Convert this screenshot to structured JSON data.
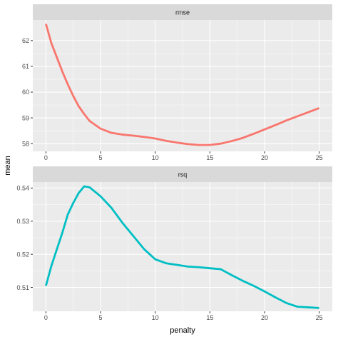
{
  "chart_data": {
    "type": "line",
    "xlabel": "penalty",
    "ylabel": "mean",
    "x_ticks": [
      0,
      5,
      10,
      15,
      20,
      25
    ],
    "x_tick_labels": [
      "0",
      "5",
      "10",
      "15",
      "20",
      "25"
    ],
    "grid": true,
    "panels": [
      {
        "strip_label": "rmse",
        "color": "#F8766D",
        "y_ticks": [
          58,
          59,
          60,
          61,
          62
        ],
        "y_tick_labels": [
          "58",
          "59",
          "60",
          "61",
          "62"
        ],
        "x": [
          0,
          0.5,
          1,
          1.5,
          2,
          2.5,
          3,
          3.5,
          4,
          5,
          6,
          7,
          8,
          9,
          10,
          11,
          12,
          13,
          14,
          15,
          16,
          17,
          18,
          19,
          20,
          21,
          22,
          23,
          24,
          25
        ],
        "y": [
          62.65,
          61.9,
          61.35,
          60.8,
          60.3,
          59.85,
          59.45,
          59.15,
          58.88,
          58.58,
          58.42,
          58.35,
          58.31,
          58.26,
          58.2,
          58.11,
          58.04,
          57.98,
          57.95,
          57.95,
          58.0,
          58.1,
          58.22,
          58.38,
          58.55,
          58.72,
          58.9,
          59.06,
          59.22,
          59.38
        ]
      },
      {
        "strip_label": "rsq",
        "color": "#00BFC4",
        "y_ticks": [
          0.51,
          0.52,
          0.53,
          0.54
        ],
        "y_tick_labels": [
          "0.51",
          "0.52",
          "0.53",
          "0.54"
        ],
        "x": [
          0,
          0.5,
          1,
          1.5,
          2,
          2.5,
          3,
          3.5,
          4,
          5,
          6,
          7,
          8,
          9,
          10,
          11,
          12,
          13,
          14,
          15,
          16,
          17,
          18,
          19,
          20,
          21,
          22,
          23,
          24,
          25
        ],
        "y": [
          0.5105,
          0.5165,
          0.5215,
          0.5265,
          0.532,
          0.5355,
          0.5385,
          0.5405,
          0.5402,
          0.5375,
          0.534,
          0.5295,
          0.5255,
          0.5215,
          0.5185,
          0.5173,
          0.5168,
          0.5163,
          0.5161,
          0.5158,
          0.5155,
          0.5137,
          0.512,
          0.5105,
          0.5088,
          0.507,
          0.5053,
          0.5042,
          0.504,
          0.5038
        ]
      }
    ]
  }
}
